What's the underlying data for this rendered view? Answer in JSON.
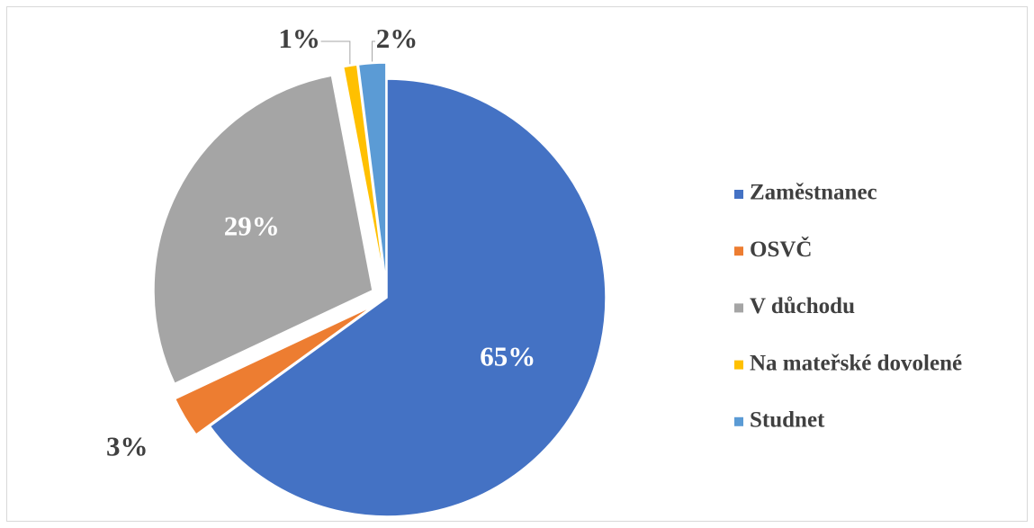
{
  "chart_data": {
    "type": "pie",
    "categories": [
      "Zaměstnanec",
      "OSVČ",
      "V důchodu",
      "Na mateřské dovolené",
      "Studnet"
    ],
    "values": [
      65,
      3,
      29,
      1,
      2
    ],
    "value_labels": [
      "65%",
      "3%",
      "29%",
      "1%",
      "2%"
    ],
    "colors": [
      "#4472c4",
      "#ed7d31",
      "#a5a5a5",
      "#ffc000",
      "#5b9bd5"
    ],
    "legend": "right"
  }
}
